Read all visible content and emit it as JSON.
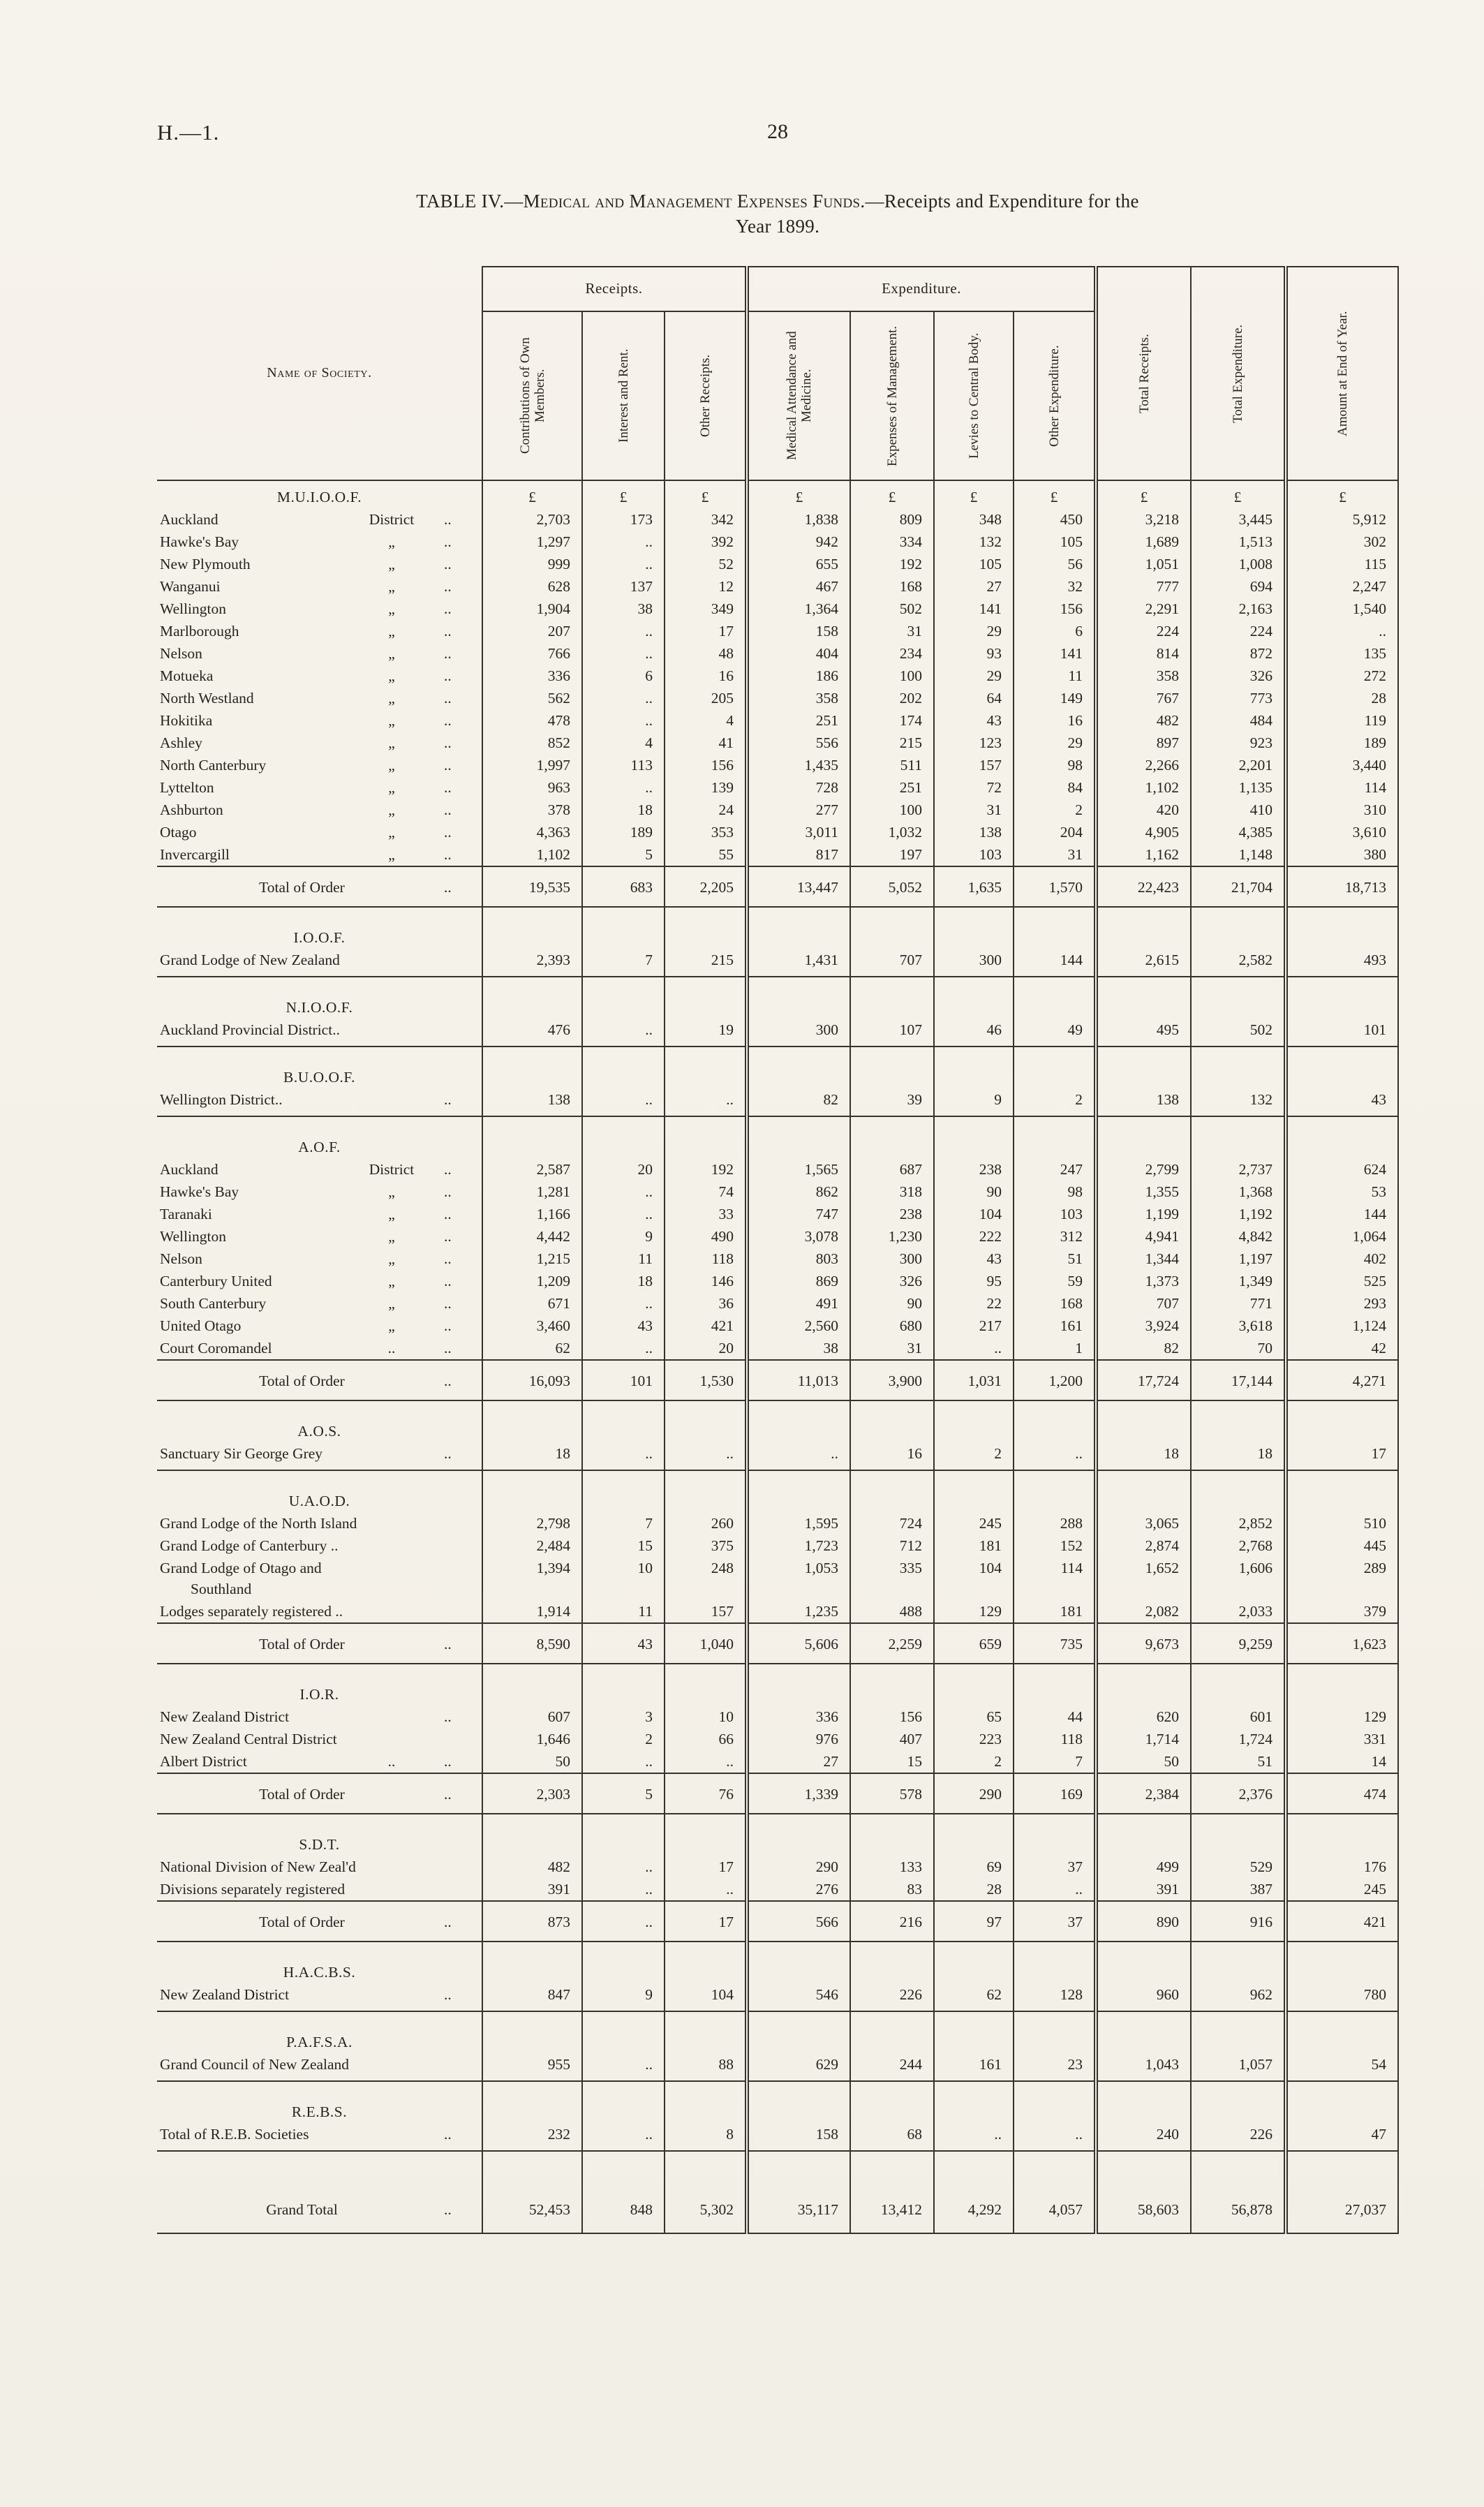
{
  "page": {
    "doc_ref": "H.—1.",
    "page_number": "28",
    "title": {
      "prefix": "TABLE IV.—",
      "smallcaps": "Medical and Management Expenses Funds.",
      "suffix": "—Receipts and Expenditure for the",
      "line2": "Year 1899."
    }
  },
  "table": {
    "name_header": "Name of Society.",
    "group_headers": {
      "receipts": "Receipts.",
      "expenditure": "Expenditure."
    },
    "col_headers": [
      "Contributions of Own Members.",
      "Interest and Rent.",
      "Other Receipts.",
      "Medical Attendance and Medicine.",
      "Expenses of Management.",
      "Levies to Central Body.",
      "Other Expenditure.",
      "Total Receipts.",
      "Total Expenditure.",
      "Amount at End of Year."
    ],
    "currency_symbol": "£",
    "rows": [
      {
        "t": "s",
        "l": "M.U.I.O.O.F.",
        "p": true
      },
      {
        "t": "r",
        "l": "Auckland",
        "m": "District",
        "d": "..",
        "v": [
          "2,703",
          "173",
          "342",
          "1,838",
          "809",
          "348",
          "450",
          "3,218",
          "3,445",
          "5,912"
        ]
      },
      {
        "t": "r",
        "l": "Hawke's Bay",
        "m": "„",
        "d": "..",
        "v": [
          "1,297",
          "..",
          "392",
          "942",
          "334",
          "132",
          "105",
          "1,689",
          "1,513",
          "302"
        ]
      },
      {
        "t": "r",
        "l": "New Plymouth",
        "m": "„",
        "d": "..",
        "v": [
          "999",
          "..",
          "52",
          "655",
          "192",
          "105",
          "56",
          "1,051",
          "1,008",
          "115"
        ]
      },
      {
        "t": "r",
        "l": "Wanganui",
        "m": "„",
        "d": "..",
        "v": [
          "628",
          "137",
          "12",
          "467",
          "168",
          "27",
          "32",
          "777",
          "694",
          "2,247"
        ]
      },
      {
        "t": "r",
        "l": "Wellington",
        "m": "„",
        "d": "..",
        "v": [
          "1,904",
          "38",
          "349",
          "1,364",
          "502",
          "141",
          "156",
          "2,291",
          "2,163",
          "1,540"
        ]
      },
      {
        "t": "r",
        "l": "Marlborough",
        "m": "„",
        "d": "..",
        "v": [
          "207",
          "..",
          "17",
          "158",
          "31",
          "29",
          "6",
          "224",
          "224",
          ".."
        ]
      },
      {
        "t": "r",
        "l": "Nelson",
        "m": "„",
        "d": "..",
        "v": [
          "766",
          "..",
          "48",
          "404",
          "234",
          "93",
          "141",
          "814",
          "872",
          "135"
        ]
      },
      {
        "t": "r",
        "l": "Motueka",
        "m": "„",
        "d": "..",
        "v": [
          "336",
          "6",
          "16",
          "186",
          "100",
          "29",
          "11",
          "358",
          "326",
          "272"
        ]
      },
      {
        "t": "r",
        "l": "North Westland",
        "m": "„",
        "d": "..",
        "v": [
          "562",
          "..",
          "205",
          "358",
          "202",
          "64",
          "149",
          "767",
          "773",
          "28"
        ]
      },
      {
        "t": "r",
        "l": "Hokitika",
        "m": "„",
        "d": "..",
        "v": [
          "478",
          "..",
          "4",
          "251",
          "174",
          "43",
          "16",
          "482",
          "484",
          "119"
        ]
      },
      {
        "t": "r",
        "l": "Ashley",
        "m": "„",
        "d": "..",
        "v": [
          "852",
          "4",
          "41",
          "556",
          "215",
          "123",
          "29",
          "897",
          "923",
          "189"
        ]
      },
      {
        "t": "r",
        "l": "North Canterbury",
        "m": "„",
        "d": "..",
        "v": [
          "1,997",
          "113",
          "156",
          "1,435",
          "511",
          "157",
          "98",
          "2,266",
          "2,201",
          "3,440"
        ]
      },
      {
        "t": "r",
        "l": "Lyttelton",
        "m": "„",
        "d": "..",
        "v": [
          "963",
          "..",
          "139",
          "728",
          "251",
          "72",
          "84",
          "1,102",
          "1,135",
          "114"
        ]
      },
      {
        "t": "r",
        "l": "Ashburton",
        "m": "„",
        "d": "..",
        "v": [
          "378",
          "18",
          "24",
          "277",
          "100",
          "31",
          "2",
          "420",
          "410",
          "310"
        ]
      },
      {
        "t": "r",
        "l": "Otago",
        "m": "„",
        "d": "..",
        "v": [
          "4,363",
          "189",
          "353",
          "3,011",
          "1,032",
          "138",
          "204",
          "4,905",
          "4,385",
          "3,610"
        ]
      },
      {
        "t": "r",
        "l": "Invercargill",
        "m": "„",
        "d": "..",
        "v": [
          "1,102",
          "5",
          "55",
          "817",
          "197",
          "103",
          "31",
          "1,162",
          "1,148",
          "380"
        ]
      },
      {
        "t": "t",
        "l": "Total of Order",
        "d": "..",
        "v": [
          "19,535",
          "683",
          "2,205",
          "13,447",
          "5,052",
          "1,635",
          "1,570",
          "22,423",
          "21,704",
          "18,713"
        ]
      },
      {
        "t": "s",
        "l": "I.O.O.F."
      },
      {
        "t": "r",
        "l": "Grand Lodge of New Zealand",
        "m": "",
        "d": "",
        "b": true,
        "v": [
          "2,393",
          "7",
          "215",
          "1,431",
          "707",
          "300",
          "144",
          "2,615",
          "2,582",
          "493"
        ]
      },
      {
        "t": "s",
        "l": "N.I.O.O.F."
      },
      {
        "t": "r",
        "l": "Auckland Provincial District..",
        "m": "",
        "d": "",
        "b": true,
        "v": [
          "476",
          "..",
          "19",
          "300",
          "107",
          "46",
          "49",
          "495",
          "502",
          "101"
        ]
      },
      {
        "t": "s",
        "l": "B.U.O.O.F."
      },
      {
        "t": "r",
        "l": "Wellington District..",
        "m": "",
        "d": "..",
        "b": true,
        "v": [
          "138",
          "..",
          "..",
          "82",
          "39",
          "9",
          "2",
          "138",
          "132",
          "43"
        ]
      },
      {
        "t": "s",
        "l": "A.O.F."
      },
      {
        "t": "r",
        "l": "Auckland",
        "m": "District",
        "d": "..",
        "v": [
          "2,587",
          "20",
          "192",
          "1,565",
          "687",
          "238",
          "247",
          "2,799",
          "2,737",
          "624"
        ]
      },
      {
        "t": "r",
        "l": "Hawke's Bay",
        "m": "„",
        "d": "..",
        "v": [
          "1,281",
          "..",
          "74",
          "862",
          "318",
          "90",
          "98",
          "1,355",
          "1,368",
          "53"
        ]
      },
      {
        "t": "r",
        "l": "Taranaki",
        "m": "„",
        "d": "..",
        "v": [
          "1,166",
          "..",
          "33",
          "747",
          "238",
          "104",
          "103",
          "1,199",
          "1,192",
          "144"
        ]
      },
      {
        "t": "r",
        "l": "Wellington",
        "m": "„",
        "d": "..",
        "v": [
          "4,442",
          "9",
          "490",
          "3,078",
          "1,230",
          "222",
          "312",
          "4,941",
          "4,842",
          "1,064"
        ]
      },
      {
        "t": "r",
        "l": "Nelson",
        "m": "„",
        "d": "..",
        "v": [
          "1,215",
          "11",
          "118",
          "803",
          "300",
          "43",
          "51",
          "1,344",
          "1,197",
          "402"
        ]
      },
      {
        "t": "r",
        "l": "Canterbury United",
        "m": "„",
        "d": "..",
        "v": [
          "1,209",
          "18",
          "146",
          "869",
          "326",
          "95",
          "59",
          "1,373",
          "1,349",
          "525"
        ]
      },
      {
        "t": "r",
        "l": "South Canterbury",
        "m": "„",
        "d": "..",
        "v": [
          "671",
          "..",
          "36",
          "491",
          "90",
          "22",
          "168",
          "707",
          "771",
          "293"
        ]
      },
      {
        "t": "r",
        "l": "United Otago",
        "m": "„",
        "d": "..",
        "v": [
          "3,460",
          "43",
          "421",
          "2,560",
          "680",
          "217",
          "161",
          "3,924",
          "3,618",
          "1,124"
        ]
      },
      {
        "t": "r",
        "l": "Court Coromandel",
        "m": "..",
        "d": "..",
        "v": [
          "62",
          "..",
          "20",
          "38",
          "31",
          "..",
          "1",
          "82",
          "70",
          "42"
        ]
      },
      {
        "t": "t",
        "l": "Total of Order",
        "d": "..",
        "v": [
          "16,093",
          "101",
          "1,530",
          "11,013",
          "3,900",
          "1,031",
          "1,200",
          "17,724",
          "17,144",
          "4,271"
        ]
      },
      {
        "t": "s",
        "l": "A.O.S."
      },
      {
        "t": "r",
        "l": "Sanctuary Sir George Grey",
        "m": "",
        "d": "..",
        "b": true,
        "v": [
          "18",
          "..",
          "..",
          "..",
          "16",
          "2",
          "..",
          "18",
          "18",
          "17"
        ]
      },
      {
        "t": "s",
        "l": "U.A.O.D."
      },
      {
        "t": "r",
        "l": "Grand Lodge of the North Island",
        "m": "",
        "d": "",
        "v": [
          "2,798",
          "7",
          "260",
          "1,595",
          "724",
          "245",
          "288",
          "3,065",
          "2,852",
          "510"
        ]
      },
      {
        "t": "r",
        "l": "Grand Lodge of Canterbury ..",
        "m": "",
        "d": "",
        "v": [
          "2,484",
          "15",
          "375",
          "1,723",
          "712",
          "181",
          "152",
          "2,874",
          "2,768",
          "445"
        ]
      },
      {
        "t": "r2",
        "l": "Grand Lodge of Otago and",
        "l2": "Southland",
        "v": [
          "1,394",
          "10",
          "248",
          "1,053",
          "335",
          "104",
          "114",
          "1,652",
          "1,606",
          "289"
        ]
      },
      {
        "t": "r",
        "l": "Lodges separately registered ..",
        "m": "",
        "d": "",
        "v": [
          "1,914",
          "11",
          "157",
          "1,235",
          "488",
          "129",
          "181",
          "2,082",
          "2,033",
          "379"
        ]
      },
      {
        "t": "t",
        "l": "Total of Order",
        "d": "..",
        "v": [
          "8,590",
          "43",
          "1,040",
          "5,606",
          "2,259",
          "659",
          "735",
          "9,673",
          "9,259",
          "1,623"
        ]
      },
      {
        "t": "s",
        "l": "I.O.R."
      },
      {
        "t": "r",
        "l": "New Zealand District",
        "m": "",
        "d": "..",
        "v": [
          "607",
          "3",
          "10",
          "336",
          "156",
          "65",
          "44",
          "620",
          "601",
          "129"
        ]
      },
      {
        "t": "r",
        "l": "New Zealand Central District",
        "m": "",
        "d": "",
        "v": [
          "1,646",
          "2",
          "66",
          "976",
          "407",
          "223",
          "118",
          "1,714",
          "1,724",
          "331"
        ]
      },
      {
        "t": "r",
        "l": "Albert District",
        "m": "..",
        "d": "..",
        "v": [
          "50",
          "..",
          "..",
          "27",
          "15",
          "2",
          "7",
          "50",
          "51",
          "14"
        ]
      },
      {
        "t": "t",
        "l": "Total of Order",
        "d": "..",
        "v": [
          "2,303",
          "5",
          "76",
          "1,339",
          "578",
          "290",
          "169",
          "2,384",
          "2,376",
          "474"
        ]
      },
      {
        "t": "s",
        "l": "S.D.T."
      },
      {
        "t": "r",
        "l": "National Division of New Zeal'd",
        "m": "",
        "d": "",
        "v": [
          "482",
          "..",
          "17",
          "290",
          "133",
          "69",
          "37",
          "499",
          "529",
          "176"
        ]
      },
      {
        "t": "r",
        "l": "Divisions separately registered",
        "m": "",
        "d": "",
        "v": [
          "391",
          "..",
          "..",
          "276",
          "83",
          "28",
          "..",
          "391",
          "387",
          "245"
        ]
      },
      {
        "t": "t",
        "l": "Total of Order",
        "d": "..",
        "v": [
          "873",
          "..",
          "17",
          "566",
          "216",
          "97",
          "37",
          "890",
          "916",
          "421"
        ]
      },
      {
        "t": "s",
        "l": "H.A.C.B.S."
      },
      {
        "t": "r",
        "l": "New Zealand District",
        "m": "",
        "d": "..",
        "b": true,
        "v": [
          "847",
          "9",
          "104",
          "546",
          "226",
          "62",
          "128",
          "960",
          "962",
          "780"
        ]
      },
      {
        "t": "s",
        "l": "P.A.F.S.A."
      },
      {
        "t": "r",
        "l": "Grand Council of New Zealand",
        "m": "",
        "d": "",
        "b": true,
        "v": [
          "955",
          "..",
          "88",
          "629",
          "244",
          "161",
          "23",
          "1,043",
          "1,057",
          "54"
        ]
      },
      {
        "t": "s",
        "l": "R.E.B.S."
      },
      {
        "t": "r",
        "l": "Total of R.E.B. Societies",
        "m": "",
        "d": "..",
        "b": true,
        "v": [
          "232",
          "..",
          "8",
          "158",
          "68",
          "..",
          "..",
          "240",
          "226",
          "47"
        ]
      },
      {
        "t": "g",
        "l": "Grand Total",
        "d": "..",
        "v": [
          "52,453",
          "848",
          "5,302",
          "35,117",
          "13,412",
          "4,292",
          "4,057",
          "58,603",
          "56,878",
          "27,037"
        ]
      }
    ]
  }
}
